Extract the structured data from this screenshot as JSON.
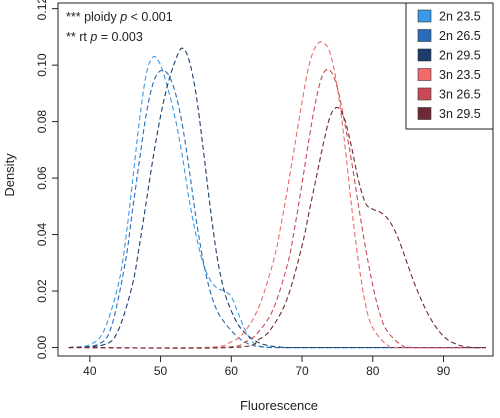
{
  "chart_data": {
    "type": "line",
    "xlabel": "Fluorescence",
    "ylabel": "Density",
    "xlim": [
      35.5,
      97
    ],
    "ylim": [
      -0.003,
      0.122
    ],
    "xticks": [
      40,
      50,
      60,
      70,
      80,
      90
    ],
    "yticks": [
      0.0,
      0.02,
      0.04,
      0.06,
      0.08,
      0.1,
      0.12
    ],
    "xtick_labels": [
      "40",
      "50",
      "60",
      "70",
      "80",
      "90"
    ],
    "ytick_labels": [
      "0.00",
      "0.02",
      "0.04",
      "0.06",
      "0.08",
      "0.10",
      "0.12"
    ],
    "grid": false,
    "legend_position": "top-right",
    "line_style": "dashed",
    "annotations": [
      {
        "prefix": "*** ploidy  ",
        "p": "p",
        "rest": " < 0.001"
      },
      {
        "prefix": "** rt  ",
        "p": "p",
        "rest": " = 0.003"
      }
    ],
    "series": [
      {
        "name": "2n 23.5",
        "color": "#3a9ae8",
        "x": [
          37,
          40,
          42,
          44,
          45,
          46,
          47,
          48,
          49,
          50,
          51,
          52,
          53,
          54,
          55,
          56,
          57,
          58,
          59,
          60,
          61,
          62,
          63,
          64,
          66,
          70,
          96
        ],
        "y": [
          0.0,
          0.001,
          0.006,
          0.022,
          0.037,
          0.058,
          0.08,
          0.097,
          0.103,
          0.1,
          0.092,
          0.082,
          0.069,
          0.053,
          0.04,
          0.03,
          0.024,
          0.021,
          0.02,
          0.018,
          0.012,
          0.006,
          0.002,
          0.0005,
          0.0,
          0.0,
          0.0
        ]
      },
      {
        "name": "2n 26.5",
        "color": "#2b6bb8",
        "x": [
          37,
          41,
          43,
          45,
          46,
          47,
          48,
          49,
          50,
          51,
          52,
          53,
          54,
          55,
          56,
          57,
          58,
          59,
          60,
          61,
          62,
          63,
          64,
          66,
          70,
          96
        ],
        "y": [
          0.0,
          0.001,
          0.007,
          0.03,
          0.048,
          0.066,
          0.083,
          0.094,
          0.098,
          0.097,
          0.091,
          0.08,
          0.064,
          0.046,
          0.031,
          0.02,
          0.013,
          0.009,
          0.006,
          0.0035,
          0.0018,
          0.0008,
          0.0003,
          0.0,
          0.0,
          0.0
        ]
      },
      {
        "name": "2n 29.5",
        "color": "#1c3c6e",
        "x": [
          37,
          42,
          44,
          46,
          47,
          48,
          49,
          50,
          51,
          52,
          53,
          54,
          55,
          56,
          57,
          58,
          59,
          60,
          61,
          62,
          63,
          64,
          65,
          66,
          68,
          72,
          96
        ],
        "y": [
          0.0,
          0.001,
          0.006,
          0.022,
          0.036,
          0.052,
          0.068,
          0.082,
          0.093,
          0.101,
          0.106,
          0.102,
          0.09,
          0.071,
          0.05,
          0.032,
          0.02,
          0.013,
          0.008,
          0.005,
          0.003,
          0.0016,
          0.0008,
          0.0004,
          0.0,
          0.0,
          0.0
        ]
      },
      {
        "name": "3n 23.5",
        "color": "#f06a6a",
        "x": [
          37,
          56,
          60,
          62,
          64,
          66,
          67,
          68,
          69,
          70,
          71,
          72,
          73,
          74,
          75,
          76,
          77,
          78,
          79,
          80,
          82,
          84,
          96
        ],
        "y": [
          0.0,
          0.0,
          0.002,
          0.006,
          0.015,
          0.031,
          0.043,
          0.057,
          0.072,
          0.087,
          0.1,
          0.107,
          0.108,
          0.104,
          0.092,
          0.073,
          0.05,
          0.03,
          0.015,
          0.007,
          0.001,
          0.0,
          0.0
        ]
      },
      {
        "name": "3n 26.5",
        "color": "#c94a55",
        "x": [
          37,
          58,
          62,
          64,
          66,
          68,
          69,
          70,
          71,
          72,
          73,
          74,
          75,
          76,
          77,
          78,
          79,
          80,
          81,
          82,
          84,
          86,
          96
        ],
        "y": [
          0.0,
          0.0,
          0.002,
          0.006,
          0.014,
          0.03,
          0.043,
          0.058,
          0.074,
          0.088,
          0.097,
          0.098,
          0.092,
          0.08,
          0.066,
          0.05,
          0.035,
          0.022,
          0.012,
          0.006,
          0.001,
          0.0,
          0.0
        ]
      },
      {
        "name": "3n 29.5",
        "color": "#6e2a33",
        "x": [
          37,
          60,
          64,
          66,
          68,
          70,
          71,
          72,
          73,
          74,
          75,
          76,
          77,
          78,
          79,
          80,
          81,
          82,
          83,
          84,
          86,
          88,
          90,
          92,
          94,
          96
        ],
        "y": [
          0.0,
          0.0,
          0.003,
          0.008,
          0.018,
          0.036,
          0.048,
          0.06,
          0.072,
          0.082,
          0.085,
          0.081,
          0.071,
          0.059,
          0.051,
          0.049,
          0.048,
          0.046,
          0.042,
          0.036,
          0.022,
          0.011,
          0.004,
          0.001,
          0.0,
          0.0
        ]
      }
    ]
  }
}
